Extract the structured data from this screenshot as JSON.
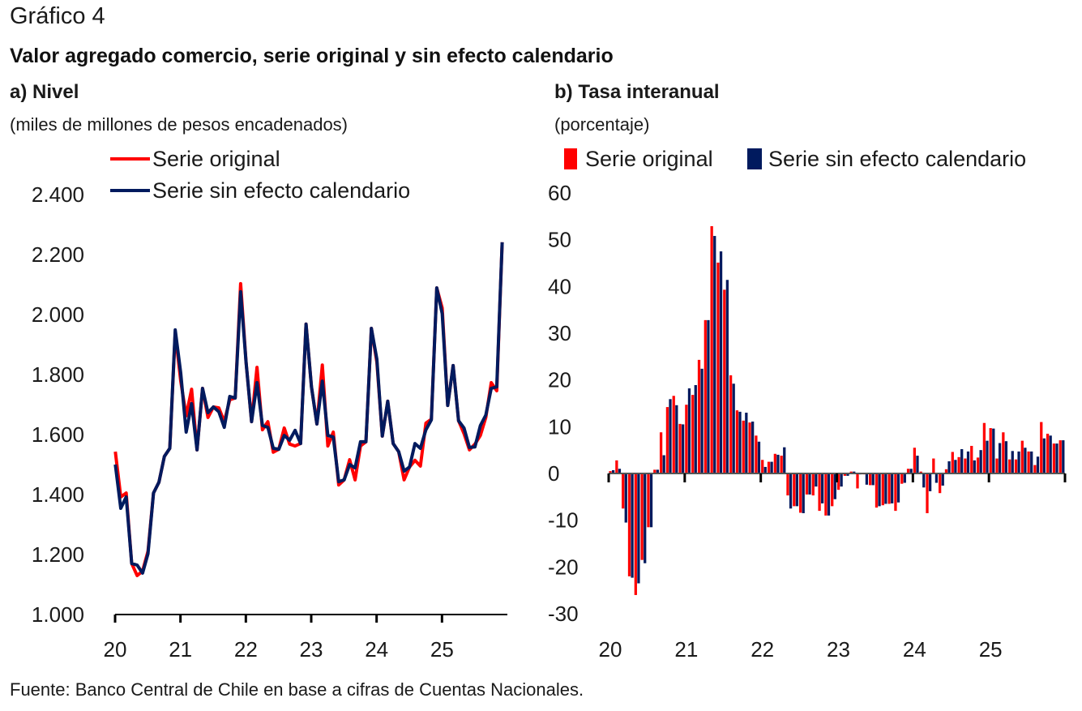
{
  "figure_label": "Gráfico 4",
  "title": "Valor agregado comercio, serie original y sin efecto calendario",
  "source": "Fuente: Banco Central de Chile en base a cifras de Cuentas Nacionales.",
  "colors": {
    "original": "#ff0000",
    "sin_efecto": "#001a5e",
    "axis": "#000000"
  },
  "chart_data": [
    {
      "id": "nivel",
      "type": "line",
      "subtitle": "a) Nivel",
      "unit": "(miles de millones de pesos encadenados)",
      "title": "a) Nivel",
      "xlabel": "",
      "ylabel": "(miles de millones de pesos encadenados)",
      "ylim": [
        1000,
        2400
      ],
      "yticks": [
        1000,
        1200,
        1400,
        1600,
        1800,
        2000,
        2200,
        2400
      ],
      "ytick_labels": [
        "1.000",
        "1.200",
        "1.400",
        "1.600",
        "1.800",
        "2.000",
        "2.200",
        "2.400"
      ],
      "xtick_labels": [
        "20",
        "21",
        "22",
        "23",
        "24",
        "25"
      ],
      "x_start": "2020-01",
      "x_frequency": "monthly",
      "grid": false,
      "legend_position": "top-left",
      "series": [
        {
          "name": "Serie original",
          "values": [
            1543,
            1392,
            1405,
            1170,
            1130,
            1145,
            1211,
            1405,
            1441,
            1527,
            1554,
            1940,
            1778,
            1662,
            1751,
            1549,
            1754,
            1657,
            1692,
            1689,
            1643,
            1716,
            1722,
            2103,
            1841,
            1643,
            1824,
            1616,
            1643,
            1541,
            1551,
            1622,
            1568,
            1562,
            1570,
            1968,
            1759,
            1635,
            1832,
            1562,
            1608,
            1432,
            1449,
            1516,
            1449,
            1562,
            1576,
            1954,
            1841,
            1595,
            1711,
            1570,
            1543,
            1449,
            1492,
            1514,
            1495,
            1638,
            1651,
            2089,
            2022,
            1697,
            1830,
            1646,
            1603,
            1549,
            1568,
            1597,
            1657,
            1773,
            1746,
            2241
          ]
        },
        {
          "name": "Serie sin efecto calendario",
          "values": [
            1500,
            1354,
            1392,
            1170,
            1165,
            1138,
            1203,
            1405,
            1441,
            1527,
            1554,
            1949,
            1805,
            1608,
            1703,
            1549,
            1754,
            1673,
            1692,
            1676,
            1624,
            1727,
            1722,
            2076,
            1841,
            1643,
            1773,
            1630,
            1624,
            1554,
            1551,
            1597,
            1581,
            1614,
            1570,
            1968,
            1759,
            1635,
            1778,
            1597,
            1592,
            1443,
            1449,
            1500,
            1489,
            1576,
            1576,
            1954,
            1851,
            1595,
            1711,
            1570,
            1543,
            1478,
            1492,
            1570,
            1554,
            1616,
            1649,
            2089,
            2003,
            1697,
            1830,
            1646,
            1622,
            1557,
            1559,
            1630,
            1665,
            1754,
            1759,
            2241
          ]
        }
      ]
    },
    {
      "id": "tasa",
      "type": "bar",
      "subtitle": "b) Tasa interanual",
      "unit": "(porcentaje)",
      "title": "b) Tasa interanual",
      "xlabel": "",
      "ylabel": "(porcentaje)",
      "ylim": [
        -30,
        60
      ],
      "yticks": [
        -30,
        -20,
        -10,
        0,
        10,
        20,
        30,
        40,
        50,
        60
      ],
      "ytick_labels": [
        "-30",
        "-20",
        "-10",
        "0",
        "10",
        "20",
        "30",
        "40",
        "50",
        "60"
      ],
      "xtick_labels": [
        "20",
        "21",
        "22",
        "23",
        "24",
        "25"
      ],
      "x_start": "2020-01",
      "x_frequency": "monthly",
      "grid": false,
      "legend_position": "top",
      "series": [
        {
          "name": "Serie original",
          "values": [
            0.5,
            2.8,
            -7.5,
            -22.0,
            -26.0,
            -18.5,
            -11.5,
            0.8,
            8.8,
            14.2,
            16.6,
            10.6,
            14.7,
            16.8,
            24.3,
            32.8,
            52.9,
            45.1,
            39.3,
            21.0,
            13.5,
            11.3,
            10.9,
            8.1,
            2.9,
            2.5,
            4.2,
            3.8,
            -4.7,
            -7.0,
            -8.4,
            -4.5,
            -4.7,
            -8.0,
            -9.0,
            -7.0,
            -3.5,
            -0.5,
            0.4,
            -3.2,
            -0.2,
            -2.5,
            -7.3,
            -6.8,
            -6.5,
            -8.0,
            -2.2,
            1.0,
            5.5,
            0.4,
            -8.5,
            3.2,
            -4.2,
            0.9,
            4.6,
            3.5,
            3.2,
            5.9,
            3.4,
            10.8,
            9.7,
            3.2,
            8.8,
            3.0,
            3.0,
            7.0,
            4.7,
            1.8,
            11.0,
            8.5,
            6.4,
            7.1
          ]
        },
        {
          "name": "Serie sin efecto calendario",
          "values": [
            0.7,
            1.0,
            -10.5,
            -22.3,
            -23.5,
            -19.2,
            -11.5,
            0.8,
            3.9,
            15.9,
            14.6,
            10.5,
            18.2,
            18.9,
            22.4,
            32.8,
            50.8,
            47.5,
            41.4,
            19.2,
            13.2,
            13.0,
            11.1,
            6.8,
            1.4,
            2.5,
            4.0,
            5.6,
            -7.5,
            -7.0,
            -8.5,
            -4.5,
            -2.8,
            -6.4,
            -9.0,
            -5.5,
            -2.8,
            -0.5,
            0.4,
            -0.2,
            -2.4,
            -2.5,
            -7.0,
            -6.5,
            -6.4,
            -6.2,
            -2.0,
            1.0,
            3.8,
            -3.0,
            -3.8,
            -2.0,
            -2.6,
            2.6,
            2.9,
            5.2,
            4.7,
            2.8,
            5.0,
            7.0,
            9.6,
            6.5,
            6.9,
            4.8,
            4.7,
            5.5,
            4.7,
            3.6,
            7.5,
            8.1,
            6.4,
            7.1
          ]
        }
      ]
    }
  ]
}
